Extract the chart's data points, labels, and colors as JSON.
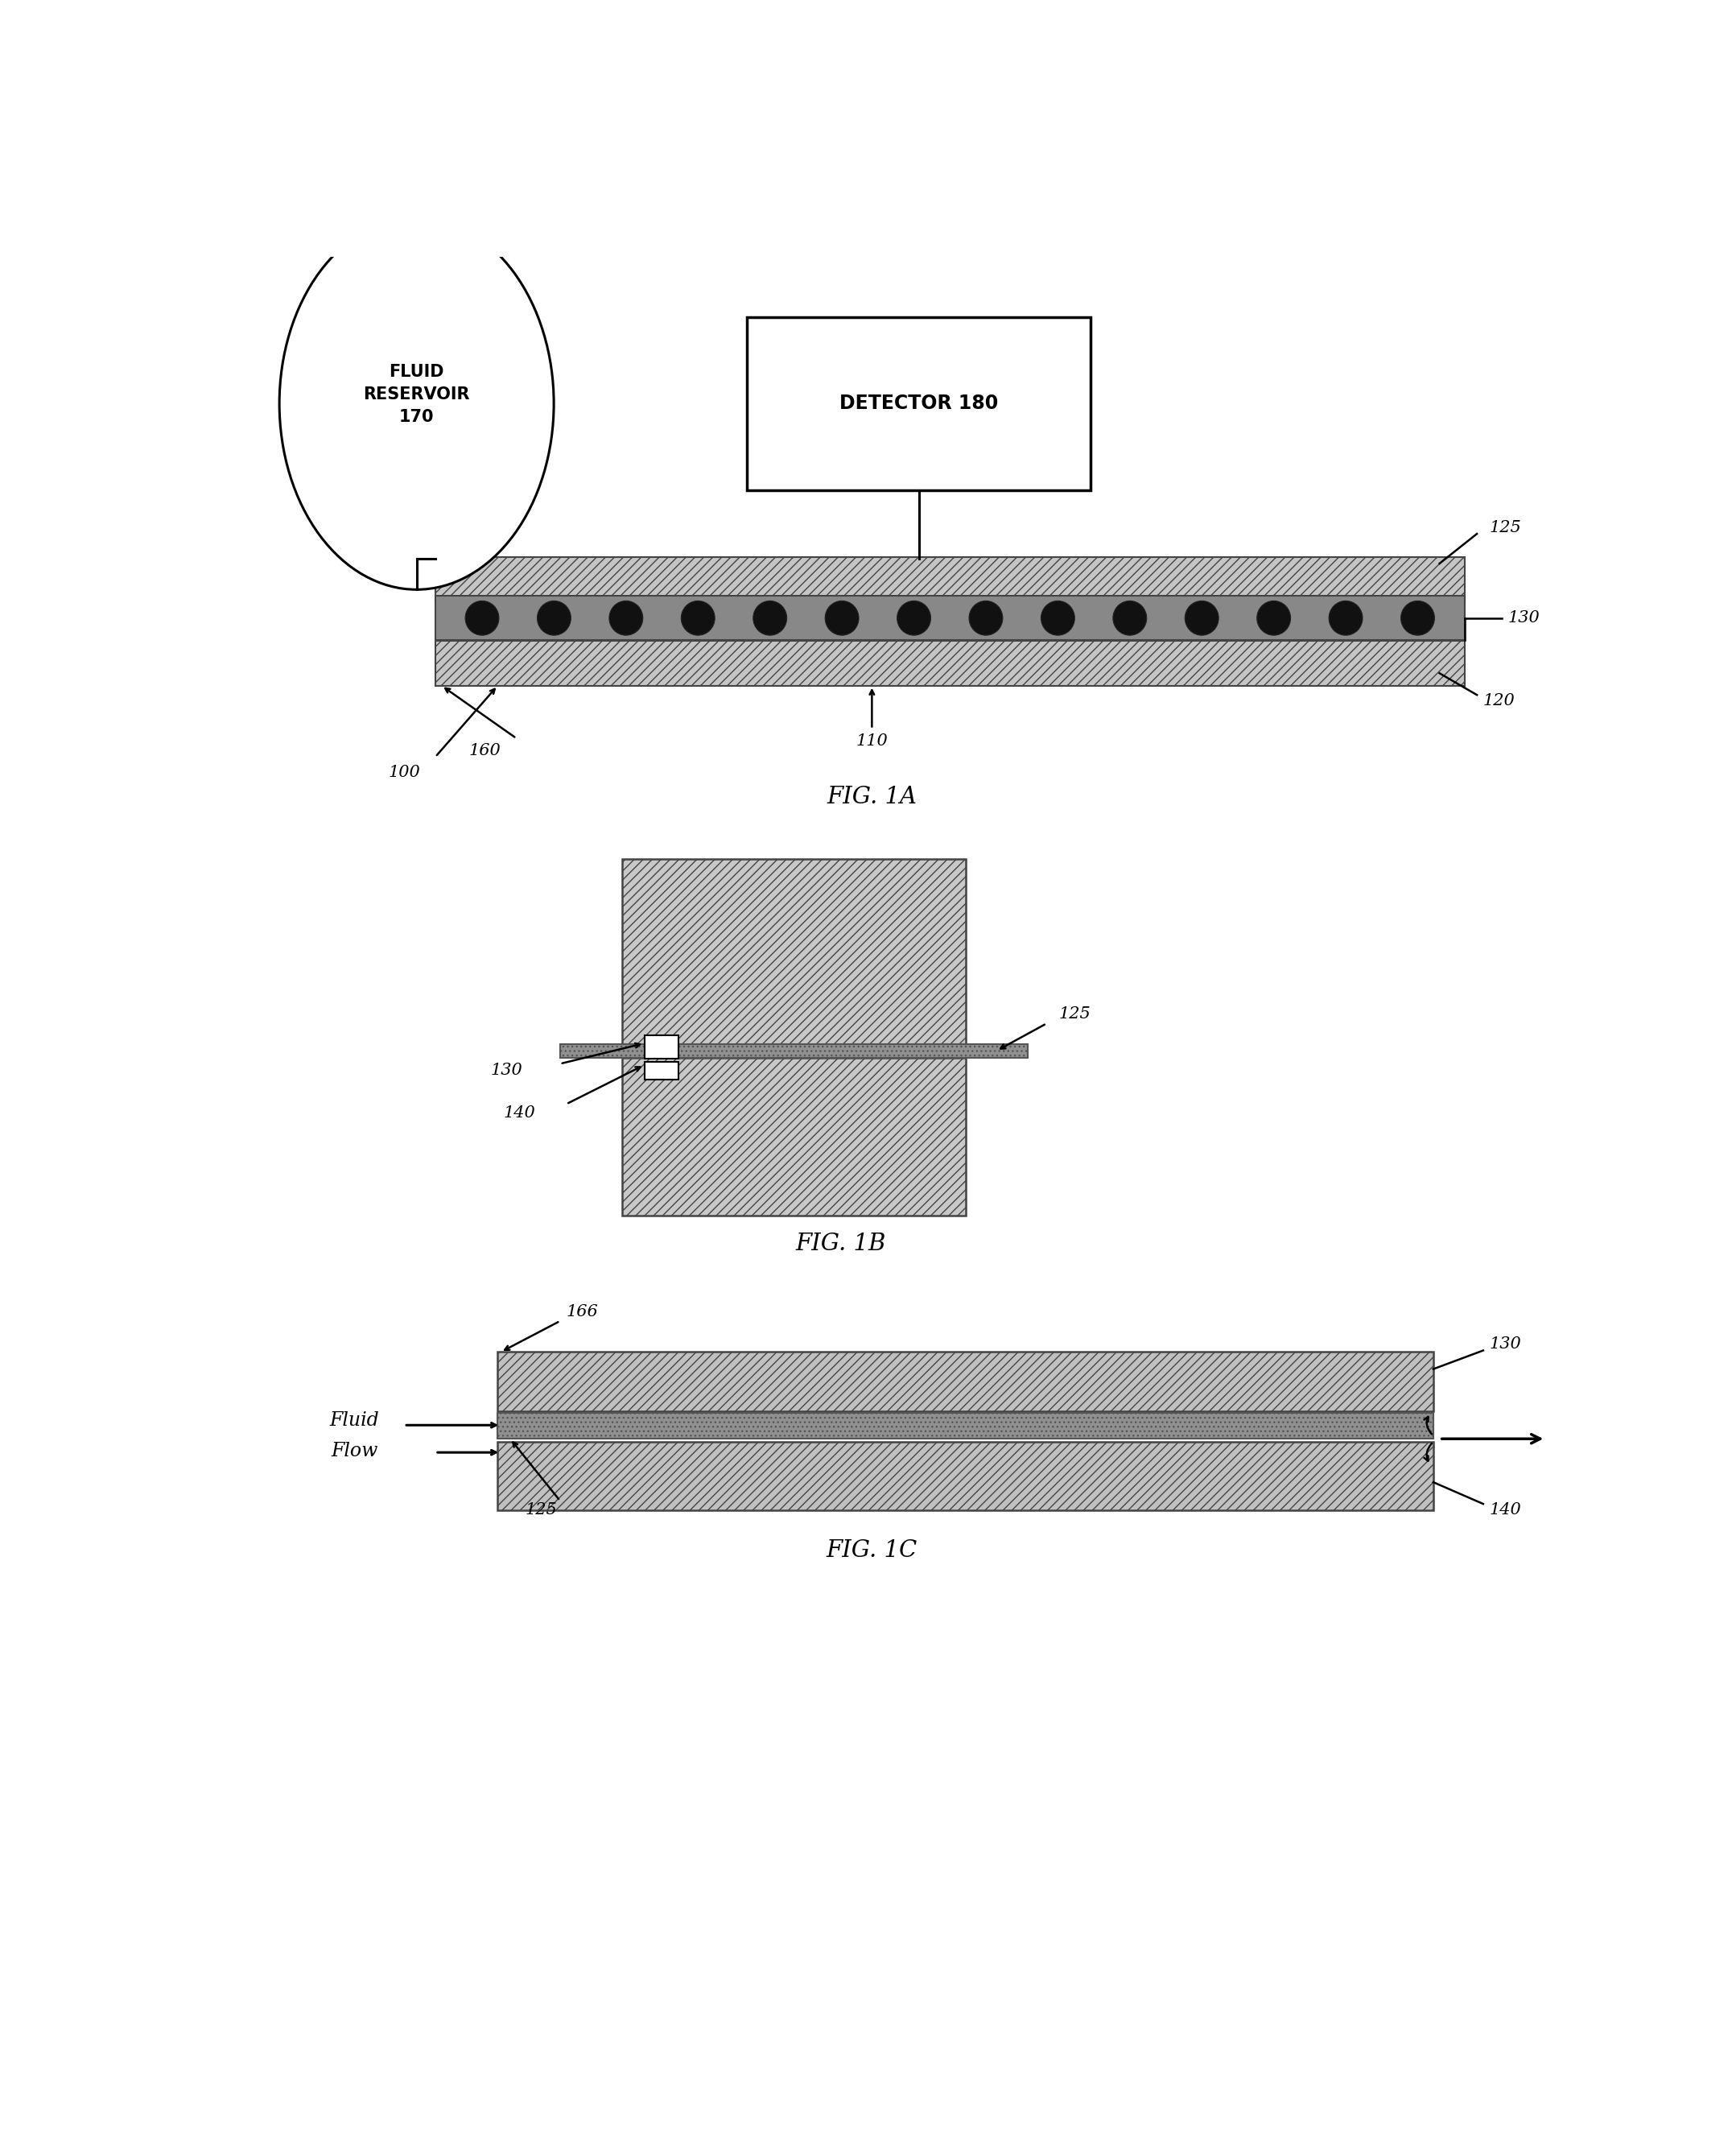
{
  "fig_width": 21.57,
  "fig_height": 26.57,
  "bg_color": "#ffffff",
  "layer_color": "#c0c0c0",
  "membrane_color": "#aaaaaa",
  "sensor_color": "#1a1a1a",
  "captions": [
    "FIG. 1A",
    "FIG. 1B",
    "FIG. 1C"
  ],
  "fig1a": {
    "reservoir_text": "FLUID\nRESERVOIR\n170",
    "detector_text": "DETECTOR 180",
    "labels": [
      "125",
      "130",
      "120",
      "160",
      "110",
      "100"
    ]
  },
  "fig1b": {
    "labels": [
      "130",
      "140",
      "125"
    ]
  },
  "fig1c": {
    "fluid_flow_text": "Fluid\nFlow",
    "labels": [
      "166",
      "130",
      "140",
      "125"
    ]
  }
}
